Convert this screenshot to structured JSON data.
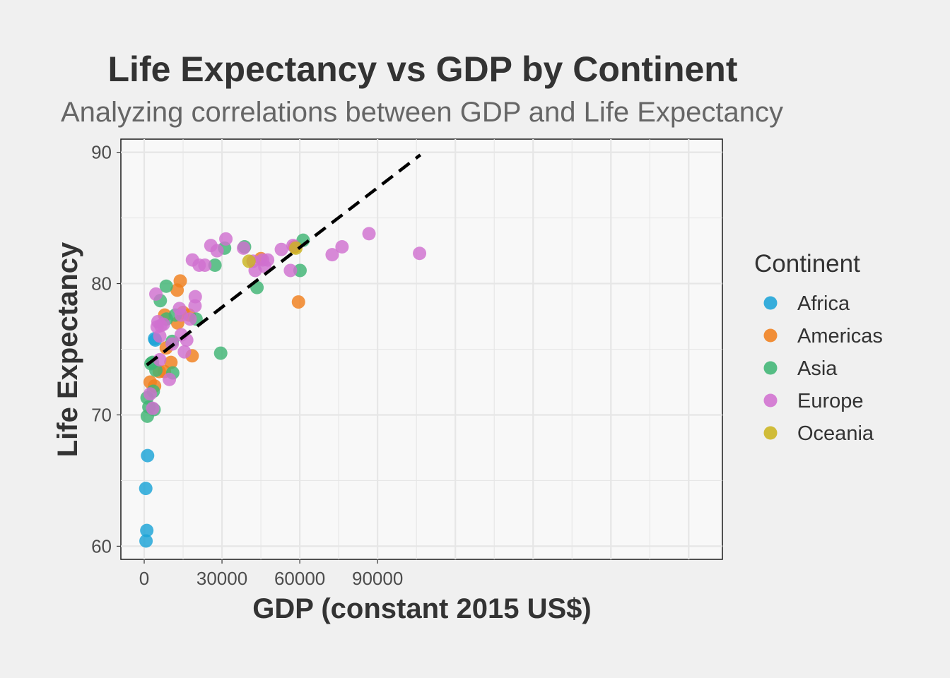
{
  "chart_data": {
    "type": "scatter",
    "title": "Life Expectancy vs GDP by Continent",
    "subtitle": "Analyzing correlations between GDP and Life Expectancy",
    "xlabel": "GDP (constant 2015 US$)",
    "ylabel": "Life Expectancy",
    "xlim": [
      -9000,
      223000
    ],
    "ylim": [
      59,
      91
    ],
    "xticks": [
      0,
      30000,
      60000,
      90000
    ],
    "xtick_labels": [
      "0",
      "30000",
      "60000",
      "90000"
    ],
    "yticks": [
      60,
      70,
      80,
      90
    ],
    "ytick_labels": [
      "60",
      "70",
      "80",
      "90"
    ],
    "grid": true,
    "legend": {
      "title": "Continent",
      "position": "right"
    },
    "trend_line": {
      "style": "dashed",
      "color": "#000000",
      "x": [
        1000,
        106500
      ],
      "y": [
        73.8,
        89.8
      ]
    },
    "series": [
      {
        "name": "Africa",
        "color": "#1ba3d7",
        "points": [
          [
            700,
            60.4
          ],
          [
            1000,
            61.2
          ],
          [
            600,
            64.4
          ],
          [
            1300,
            66.9
          ],
          [
            4000,
            75.8
          ],
          [
            4300,
            75.7
          ]
        ]
      },
      {
        "name": "Americas",
        "color": "#f07f1c",
        "points": [
          [
            2300,
            72.5
          ],
          [
            4000,
            72.2
          ],
          [
            5800,
            73.3
          ],
          [
            7800,
            73.3
          ],
          [
            8500,
            75.1
          ],
          [
            10300,
            74.0
          ],
          [
            7900,
            77.6
          ],
          [
            12700,
            79.5
          ],
          [
            13900,
            80.2
          ],
          [
            12900,
            77.0
          ],
          [
            15000,
            77.8
          ],
          [
            17300,
            77.6
          ],
          [
            18500,
            74.5
          ],
          [
            45000,
            81.9
          ],
          [
            59500,
            78.6
          ],
          [
            58000,
            82.8
          ]
        ]
      },
      {
        "name": "Asia",
        "color": "#3fb574",
        "points": [
          [
            1200,
            69.9
          ],
          [
            1100,
            71.3
          ],
          [
            1800,
            70.6
          ],
          [
            3800,
            70.4
          ],
          [
            3500,
            71.8
          ],
          [
            4500,
            73.4
          ],
          [
            2600,
            73.9
          ],
          [
            3200,
            74.0
          ],
          [
            6200,
            78.7
          ],
          [
            8500,
            79.8
          ],
          [
            8600,
            77.3
          ],
          [
            10800,
            75.6
          ],
          [
            11000,
            73.2
          ],
          [
            12000,
            77.6
          ],
          [
            20000,
            77.3
          ],
          [
            27300,
            81.4
          ],
          [
            31000,
            82.7
          ],
          [
            38700,
            82.8
          ],
          [
            29500,
            74.7
          ],
          [
            43500,
            79.7
          ],
          [
            60100,
            81.0
          ],
          [
            61300,
            83.3
          ]
        ]
      },
      {
        "name": "Europe",
        "color": "#d070cf",
        "points": [
          [
            4500,
            79.2
          ],
          [
            5300,
            77.1
          ],
          [
            5000,
            76.7
          ],
          [
            6000,
            76.0
          ],
          [
            6400,
            76.8
          ],
          [
            7400,
            76.9
          ],
          [
            6000,
            74.2
          ],
          [
            2300,
            71.6
          ],
          [
            3300,
            70.5
          ],
          [
            9700,
            72.7
          ],
          [
            10800,
            75.4
          ],
          [
            13600,
            78.1
          ],
          [
            14300,
            77.6
          ],
          [
            14300,
            76.1
          ],
          [
            15500,
            74.8
          ],
          [
            16400,
            75.7
          ],
          [
            17700,
            77.3
          ],
          [
            18600,
            81.8
          ],
          [
            19700,
            79.0
          ],
          [
            19600,
            78.3
          ],
          [
            21200,
            81.4
          ],
          [
            23400,
            81.4
          ],
          [
            25700,
            82.9
          ],
          [
            28100,
            82.5
          ],
          [
            31500,
            83.4
          ],
          [
            38300,
            82.7
          ],
          [
            42000,
            81.7
          ],
          [
            42800,
            81.0
          ],
          [
            45700,
            81.8
          ],
          [
            46500,
            81.3
          ],
          [
            47600,
            81.8
          ],
          [
            52900,
            82.6
          ],
          [
            56400,
            81.0
          ],
          [
            57400,
            82.9
          ],
          [
            72500,
            82.2
          ],
          [
            76300,
            82.8
          ],
          [
            86700,
            83.8
          ],
          [
            106200,
            82.3
          ]
        ]
      },
      {
        "name": "Oceania",
        "color": "#cbb41f",
        "points": [
          [
            40400,
            81.7
          ],
          [
            58500,
            82.7
          ]
        ]
      }
    ]
  }
}
